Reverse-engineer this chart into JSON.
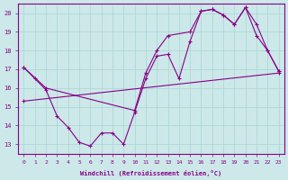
{
  "xlabel": "Windchill (Refroidissement éolien,°C)",
  "background_color": "#cce8e8",
  "line_color": "#880088",
  "xlim": [
    -0.5,
    23.5
  ],
  "ylim": [
    12.5,
    20.5
  ],
  "xticks": [
    0,
    1,
    2,
    3,
    4,
    5,
    6,
    7,
    8,
    9,
    10,
    11,
    12,
    13,
    14,
    15,
    16,
    17,
    18,
    19,
    20,
    21,
    22,
    23
  ],
  "yticks": [
    13,
    14,
    15,
    16,
    17,
    18,
    19,
    20
  ],
  "curve1_x": [
    0,
    1,
    2,
    3,
    4,
    5,
    6,
    7,
    8,
    9,
    10,
    11,
    12,
    13,
    14,
    15,
    16,
    17,
    18,
    19,
    20,
    21,
    22,
    23
  ],
  "curve1_y": [
    17.1,
    16.5,
    15.9,
    14.5,
    13.9,
    13.1,
    12.9,
    13.6,
    13.6,
    13.0,
    14.7,
    16.5,
    17.7,
    17.8,
    16.5,
    18.5,
    20.1,
    20.2,
    19.9,
    19.4,
    20.3,
    18.8,
    18.0,
    16.9
  ],
  "curve2_x": [
    0,
    2,
    10,
    11,
    12,
    13,
    15,
    16,
    17,
    18,
    19,
    20,
    21,
    22,
    23
  ],
  "curve2_y": [
    17.1,
    16.0,
    14.8,
    16.8,
    18.0,
    18.8,
    19.0,
    20.1,
    20.2,
    19.9,
    19.4,
    20.3,
    19.4,
    18.0,
    16.9
  ],
  "curve3_x": [
    0,
    23
  ],
  "curve3_y": [
    15.3,
    16.8
  ],
  "grid_color": "#aad4d4"
}
